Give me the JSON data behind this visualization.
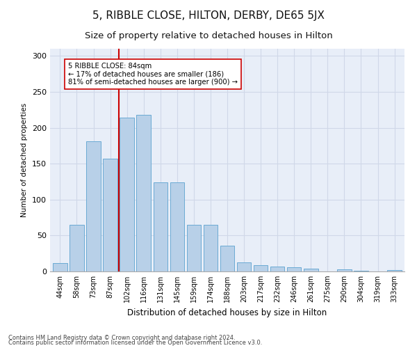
{
  "title": "5, RIBBLE CLOSE, HILTON, DERBY, DE65 5JX",
  "subtitle": "Size of property relative to detached houses in Hilton",
  "xlabel": "Distribution of detached houses by size in Hilton",
  "ylabel": "Number of detached properties",
  "categories": [
    "44sqm",
    "58sqm",
    "73sqm",
    "87sqm",
    "102sqm",
    "116sqm",
    "131sqm",
    "145sqm",
    "159sqm",
    "174sqm",
    "188sqm",
    "203sqm",
    "217sqm",
    "232sqm",
    "246sqm",
    "261sqm",
    "275sqm",
    "290sqm",
    "304sqm",
    "319sqm",
    "333sqm"
  ],
  "values": [
    12,
    65,
    181,
    157,
    214,
    218,
    124,
    124,
    65,
    65,
    36,
    13,
    9,
    7,
    6,
    4,
    0,
    3,
    1,
    0,
    2
  ],
  "bar_color": "#b8d0e8",
  "bar_edge_color": "#6aaad4",
  "vline_x": 3.5,
  "vline_color": "#cc0000",
  "annotation_text": "5 RIBBLE CLOSE: 84sqm\n← 17% of detached houses are smaller (186)\n81% of semi-detached houses are larger (900) →",
  "annotation_box_color": "#ffffff",
  "annotation_box_edge_color": "#cc0000",
  "ylim": [
    0,
    310
  ],
  "yticks": [
    0,
    50,
    100,
    150,
    200,
    250,
    300
  ],
  "grid_color": "#d0d8e8",
  "footer_line1": "Contains HM Land Registry data © Crown copyright and database right 2024.",
  "footer_line2": "Contains public sector information licensed under the Open Government Licence v3.0.",
  "background_color": "#e8eef8",
  "title_fontsize": 11,
  "subtitle_fontsize": 9.5
}
